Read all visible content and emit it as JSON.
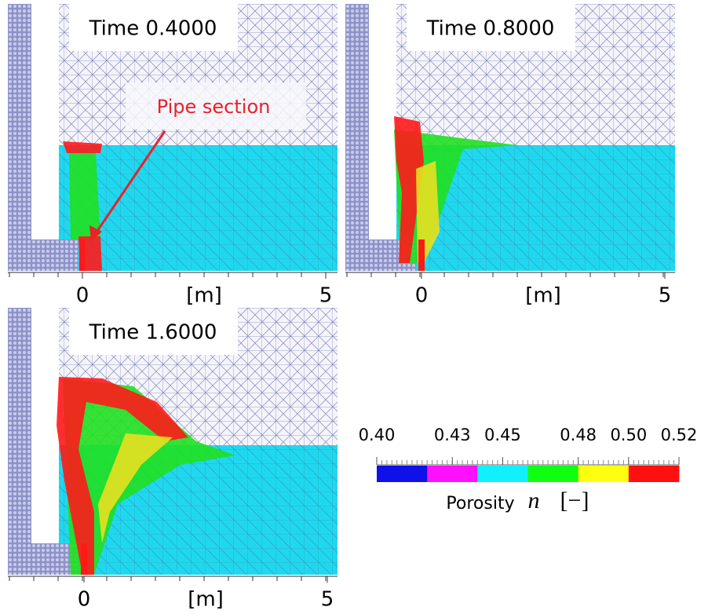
{
  "panels": [
    {
      "title": "Time 0.4000",
      "x_label": "[m]",
      "xticks": [
        0,
        5
      ],
      "annotation": "Pipe section"
    },
    {
      "title": "Time 0.8000",
      "x_label": "[m]",
      "xticks": [
        0,
        5
      ]
    },
    {
      "title": "Time 1.6000",
      "x_label": "[m]",
      "xticks": [
        0,
        5
      ]
    }
  ],
  "colorbar": {
    "ticks": [
      {
        "value": 0.4,
        "label": "0.40"
      },
      {
        "value": 0.43,
        "label": "0.43"
      },
      {
        "value": 0.45,
        "label": "0.45"
      },
      {
        "value": 0.48,
        "label": "0.48"
      },
      {
        "value": 0.5,
        "label": "0.50"
      },
      {
        "value": 0.52,
        "label": "0.52"
      }
    ],
    "colors": [
      "#1010e8",
      "#ff10ff",
      "#10f0ff",
      "#10ff10",
      "#ffff10",
      "#ff1010"
    ],
    "label": "Porosity",
    "symbol": "n",
    "unit": "[−]"
  }
}
